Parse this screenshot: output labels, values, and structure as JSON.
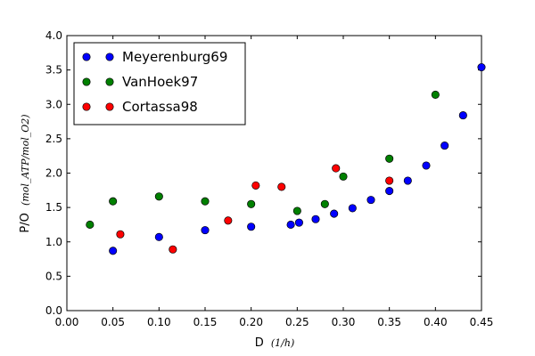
{
  "chart_data": {
    "type": "scatter",
    "xlabel_text": "D",
    "xlabel_math": "(1/h)",
    "ylabel_text": "P/O",
    "ylabel_math": "(mol_ATP/mol_O2)",
    "xlim": [
      0.0,
      0.45
    ],
    "ylim": [
      0.0,
      4.0
    ],
    "xticks": [
      0.0,
      0.05,
      0.1,
      0.15,
      0.2,
      0.25,
      0.3,
      0.35,
      0.4,
      0.45
    ],
    "xtick_labels": [
      "0.00",
      "0.05",
      "0.10",
      "0.15",
      "0.20",
      "0.25",
      "0.30",
      "0.35",
      "0.40",
      "0.45"
    ],
    "yticks": [
      0.0,
      0.5,
      1.0,
      1.5,
      2.0,
      2.5,
      3.0,
      3.5,
      4.0
    ],
    "ytick_labels": [
      "0.0",
      "0.5",
      "1.0",
      "1.5",
      "2.0",
      "2.5",
      "3.0",
      "3.5",
      "4.0"
    ],
    "grid": false,
    "legend_position": "top-left",
    "series": [
      {
        "name": "Meyerenburg69",
        "color": "#0000ff",
        "points": [
          [
            0.05,
            0.87
          ],
          [
            0.1,
            1.07
          ],
          [
            0.15,
            1.17
          ],
          [
            0.2,
            1.22
          ],
          [
            0.243,
            1.25
          ],
          [
            0.252,
            1.28
          ],
          [
            0.27,
            1.33
          ],
          [
            0.29,
            1.41
          ],
          [
            0.31,
            1.49
          ],
          [
            0.33,
            1.61
          ],
          [
            0.35,
            1.74
          ],
          [
            0.37,
            1.89
          ],
          [
            0.39,
            2.11
          ],
          [
            0.41,
            2.4
          ],
          [
            0.43,
            2.84
          ],
          [
            0.45,
            3.54
          ]
        ]
      },
      {
        "name": "VanHoek97",
        "color": "#008000",
        "points": [
          [
            0.025,
            1.25
          ],
          [
            0.05,
            1.59
          ],
          [
            0.1,
            1.66
          ],
          [
            0.15,
            1.59
          ],
          [
            0.2,
            1.55
          ],
          [
            0.25,
            1.45
          ],
          [
            0.28,
            1.55
          ],
          [
            0.3,
            1.95
          ],
          [
            0.35,
            2.21
          ],
          [
            0.4,
            3.14
          ]
        ]
      },
      {
        "name": "Cortassa98",
        "color": "#ff0000",
        "points": [
          [
            0.058,
            1.11
          ],
          [
            0.115,
            0.89
          ],
          [
            0.175,
            1.31
          ],
          [
            0.205,
            1.82
          ],
          [
            0.233,
            1.8
          ],
          [
            0.292,
            2.07
          ],
          [
            0.35,
            1.89
          ]
        ]
      }
    ]
  }
}
